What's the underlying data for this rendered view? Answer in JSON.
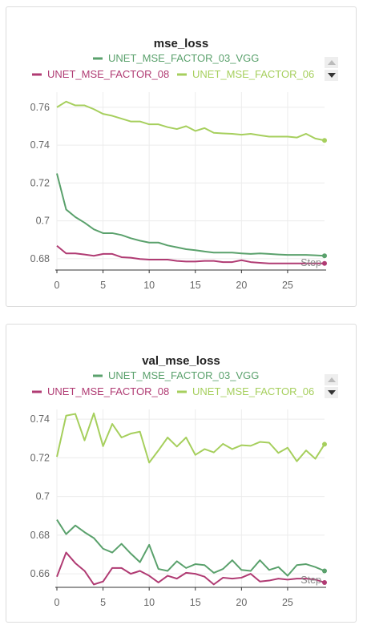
{
  "chart_data": [
    {
      "type": "line",
      "title": "mse_loss",
      "xlabel": "Step",
      "x": [
        0,
        1,
        2,
        3,
        4,
        5,
        6,
        7,
        8,
        9,
        10,
        11,
        12,
        13,
        14,
        15,
        16,
        17,
        18,
        19,
        20,
        21,
        22,
        23,
        24,
        25,
        26,
        27,
        28,
        29
      ],
      "xlim": [
        0,
        29
      ],
      "ylim": [
        0.674,
        0.768
      ],
      "xticks": [
        "0",
        "5",
        "10",
        "15",
        "20",
        "25"
      ],
      "yticks": [
        "0.68",
        "0.7",
        "0.72",
        "0.74",
        "0.76"
      ],
      "xtick_values": [
        0,
        5,
        10,
        15,
        20,
        25
      ],
      "ytick_values": [
        0.68,
        0.7,
        0.72,
        0.74,
        0.76
      ],
      "series": [
        {
          "name": "UNET_MSE_FACTOR_03_VGG",
          "color": "#5aa16c",
          "values": [
            0.725,
            0.706,
            0.702,
            0.699,
            0.6955,
            0.6935,
            0.6935,
            0.6925,
            0.6908,
            0.6895,
            0.6885,
            0.6885,
            0.687,
            0.686,
            0.685,
            0.6845,
            0.6838,
            0.6832,
            0.6832,
            0.6832,
            0.6828,
            0.6825,
            0.6828,
            0.6825,
            0.6822,
            0.682,
            0.682,
            0.682,
            0.6818,
            0.6815
          ]
        },
        {
          "name": "UNET_MSE_FACTOR_08",
          "color": "#b03b73",
          "values": [
            0.6868,
            0.6828,
            0.6828,
            0.6822,
            0.6815,
            0.6825,
            0.6825,
            0.6808,
            0.6805,
            0.6798,
            0.6795,
            0.6795,
            0.6795,
            0.6788,
            0.6785,
            0.6785,
            0.6788,
            0.6788,
            0.6782,
            0.6782,
            0.6792,
            0.6782,
            0.6778,
            0.6775,
            0.6775,
            0.6775,
            0.6775,
            0.6775,
            0.6775,
            0.6775
          ]
        },
        {
          "name": "UNET_MSE_FACTOR_06",
          "color": "#a6cf5d",
          "values": [
            0.76,
            0.763,
            0.761,
            0.761,
            0.759,
            0.7565,
            0.7555,
            0.754,
            0.7525,
            0.7525,
            0.751,
            0.751,
            0.7495,
            0.7485,
            0.75,
            0.7475,
            0.749,
            0.7465,
            0.7462,
            0.746,
            0.7455,
            0.746,
            0.7452,
            0.7445,
            0.7445,
            0.7445,
            0.744,
            0.746,
            0.7435,
            0.7425
          ]
        }
      ],
      "legend": {
        "placement": "top"
      }
    },
    {
      "type": "line",
      "title": "val_mse_loss",
      "xlabel": "Step",
      "x": [
        0,
        1,
        2,
        3,
        4,
        5,
        6,
        7,
        8,
        9,
        10,
        11,
        12,
        13,
        14,
        15,
        16,
        17,
        18,
        19,
        20,
        21,
        22,
        23,
        24,
        25,
        26,
        27,
        28,
        29
      ],
      "xlim": [
        0,
        29
      ],
      "ylim": [
        0.653,
        0.745
      ],
      "xticks": [
        "0",
        "5",
        "10",
        "15",
        "20",
        "25"
      ],
      "yticks": [
        "0.66",
        "0.68",
        "0.7",
        "0.72",
        "0.74"
      ],
      "xtick_values": [
        0,
        5,
        10,
        15,
        20,
        25
      ],
      "ytick_values": [
        0.66,
        0.68,
        0.7,
        0.72,
        0.74
      ],
      "series": [
        {
          "name": "UNET_MSE_FACTOR_03_VGG",
          "color": "#5aa16c",
          "values": [
            0.688,
            0.6805,
            0.685,
            0.6815,
            0.6785,
            0.673,
            0.671,
            0.6755,
            0.6705,
            0.666,
            0.675,
            0.6625,
            0.6615,
            0.6665,
            0.663,
            0.665,
            0.6645,
            0.6605,
            0.6625,
            0.667,
            0.662,
            0.6615,
            0.667,
            0.662,
            0.6635,
            0.659,
            0.6645,
            0.665,
            0.6635,
            0.6615
          ]
        },
        {
          "name": "UNET_MSE_FACTOR_08",
          "color": "#b03b73",
          "values": [
            0.6585,
            0.671,
            0.6655,
            0.6615,
            0.6545,
            0.656,
            0.663,
            0.663,
            0.66,
            0.6615,
            0.659,
            0.6555,
            0.659,
            0.6575,
            0.6605,
            0.66,
            0.6585,
            0.6545,
            0.658,
            0.6575,
            0.658,
            0.66,
            0.656,
            0.6565,
            0.6575,
            0.657,
            0.6575,
            0.6575,
            0.657,
            0.6555
          ]
        },
        {
          "name": "UNET_MSE_FACTOR_06",
          "color": "#a6cf5d",
          "values": [
            0.7205,
            0.7418,
            0.7427,
            0.729,
            0.743,
            0.726,
            0.7375,
            0.7305,
            0.7325,
            0.7335,
            0.7175,
            0.7238,
            0.7305,
            0.7258,
            0.7305,
            0.7215,
            0.7245,
            0.7228,
            0.7272,
            0.7245,
            0.7265,
            0.7262,
            0.7282,
            0.7278,
            0.7225,
            0.7252,
            0.7182,
            0.7238,
            0.7195,
            0.727
          ]
        }
      ],
      "legend": {
        "placement": "top"
      }
    }
  ]
}
